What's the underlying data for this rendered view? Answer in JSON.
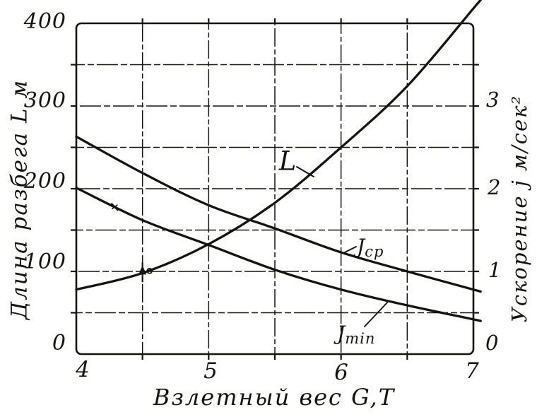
{
  "figure": {
    "background": "#ffffff",
    "ink": "#17140f"
  },
  "y_left": {
    "title": "Длина разбега L м",
    "tick_labels": [
      "400",
      "300",
      "200",
      "100",
      "0"
    ]
  },
  "y_right": {
    "title": "Ускорение j м/сек²",
    "tick_labels": [
      "3",
      "2",
      "1",
      "0"
    ]
  },
  "x_axis": {
    "title": "Взлетный вес G,Т",
    "tick_labels": [
      "4",
      "5",
      "6",
      "7"
    ]
  },
  "curve_labels": {
    "l": {
      "text": "L"
    },
    "jcp": {
      "main": "J",
      "sub": "ср"
    },
    "jmin": {
      "main": "J",
      "sub": "min"
    }
  },
  "chart_data": {
    "type": "line",
    "title": "",
    "xlabel": "Взлетный вес G,Т",
    "x_range": [
      4,
      7
    ],
    "y_left_label": "Длина разбега L м",
    "y_left_range": [
      0,
      400
    ],
    "y_left_tick_step": 50,
    "y_right_label": "Ускорение j м/сек²",
    "y_right_range": [
      0,
      4
    ],
    "y_right_ticks": [
      0,
      1,
      2,
      3
    ],
    "x_grid_step": 0.5,
    "grid": "on",
    "legend": "labels-on-curves",
    "x": [
      4,
      4.5,
      5,
      5.5,
      6,
      6.5,
      7
    ],
    "series": [
      {
        "name": "L",
        "axis": "left",
        "unit": "м",
        "values": [
          78,
          98,
          133,
          183,
          250,
          324,
          418
        ]
      },
      {
        "name": "Jср",
        "axis": "right",
        "unit": "м/сек²",
        "values": [
          2.63,
          2.19,
          1.8,
          1.52,
          1.23,
          1.0,
          0.78
        ]
      },
      {
        "name": "Jmin",
        "axis": "right",
        "unit": "м/сек²",
        "values": [
          2.01,
          1.62,
          1.32,
          1.02,
          0.78,
          0.59,
          0.42
        ]
      }
    ],
    "markers": [
      {
        "series": "L",
        "x": 4.5,
        "value": 98,
        "shape": "arrow-dot"
      },
      {
        "series": "Jmin",
        "x": 4.29,
        "value": 1.78,
        "shape": "cross-tick"
      }
    ]
  }
}
